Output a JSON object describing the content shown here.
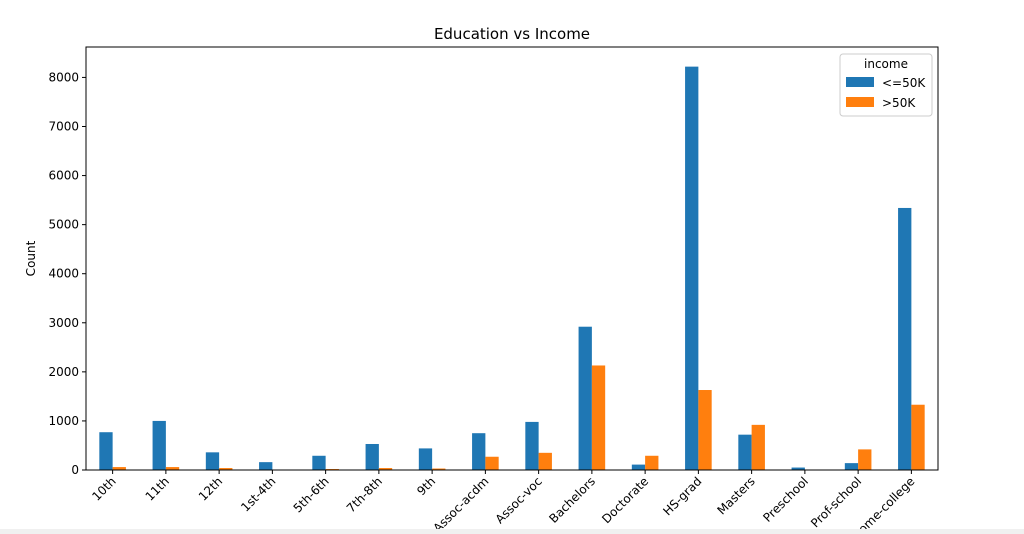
{
  "chart_data": {
    "type": "bar",
    "title": "Education vs Income",
    "xlabel": "",
    "ylabel": "Count",
    "categories": [
      "10th",
      "11th",
      "12th",
      "1st-4th",
      "5th-6th",
      "7th-8th",
      "9th",
      "Assoc-acdm",
      "Assoc-voc",
      "Bachelors",
      "Doctorate",
      "HS-grad",
      "Masters",
      "Preschool",
      "Prof-school",
      "Some-college"
    ],
    "series": [
      {
        "name": "<=50K",
        "color": "#1f77b4",
        "values": [
          770,
          1000,
          360,
          160,
          290,
          530,
          440,
          750,
          980,
          2920,
          110,
          8220,
          720,
          50,
          140,
          5340
        ]
      },
      {
        "name": ">50K",
        "color": "#ff7f0e",
        "values": [
          60,
          60,
          40,
          5,
          20,
          40,
          30,
          270,
          350,
          2130,
          290,
          1630,
          920,
          0,
          420,
          1330
        ]
      }
    ],
    "yticks": [
      "0",
      "1000",
      "2000",
      "3000",
      "4000",
      "5000",
      "6000",
      "7000",
      "8000"
    ],
    "ylim": [
      0,
      8620
    ],
    "legend": {
      "title": "income",
      "position": "top-right"
    },
    "grid": false
  }
}
